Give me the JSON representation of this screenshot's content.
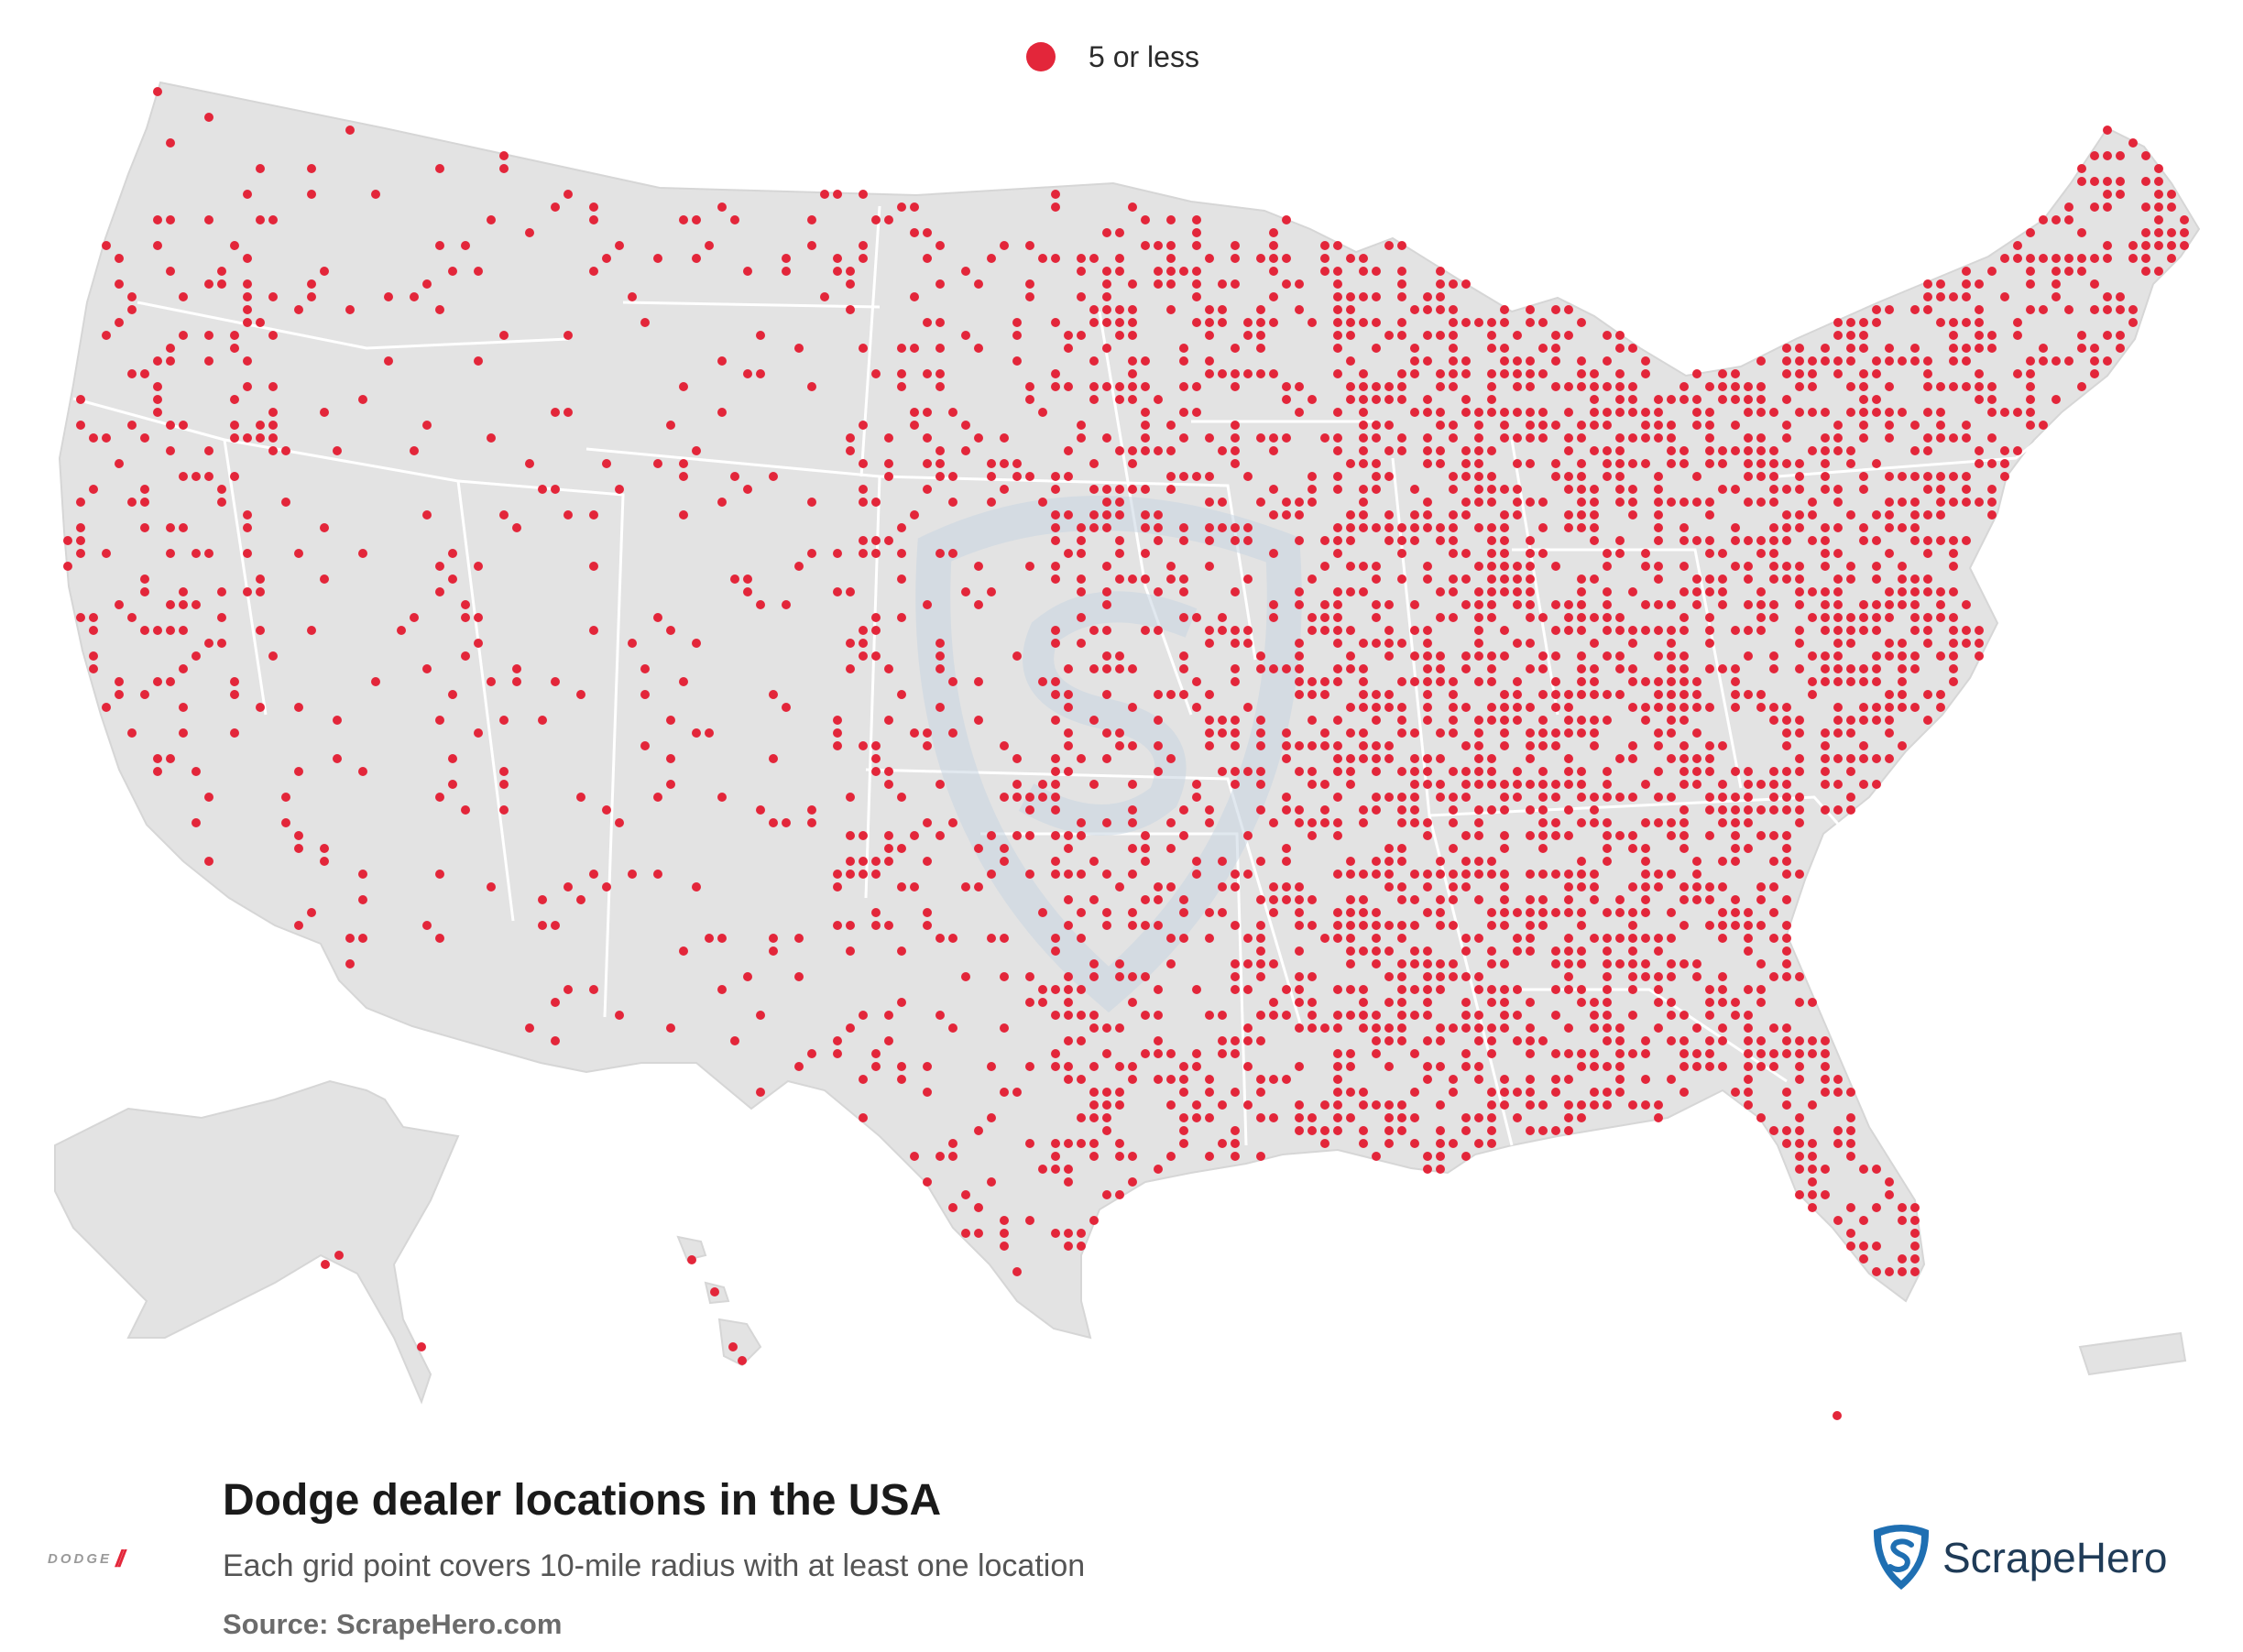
{
  "legend": {
    "label": "5 or less",
    "color": "#e3263a"
  },
  "title": "Dodge dealer locations in the USA",
  "subtitle": "Each grid point covers 10-mile radius with at least one location",
  "source": "Source: ScrapeHero.com",
  "brand_logo": {
    "name": "DODGE",
    "stripe_color": "#e3263a"
  },
  "scrapehero_logo": {
    "text": "ScrapeHero",
    "icon": "shield-s-icon",
    "color": "#1f6fb2"
  },
  "colors": {
    "land": "#e3e3e3",
    "state_border": "#ffffff",
    "dot": "#e3263a",
    "watermark": "#c9d6e2"
  }
}
